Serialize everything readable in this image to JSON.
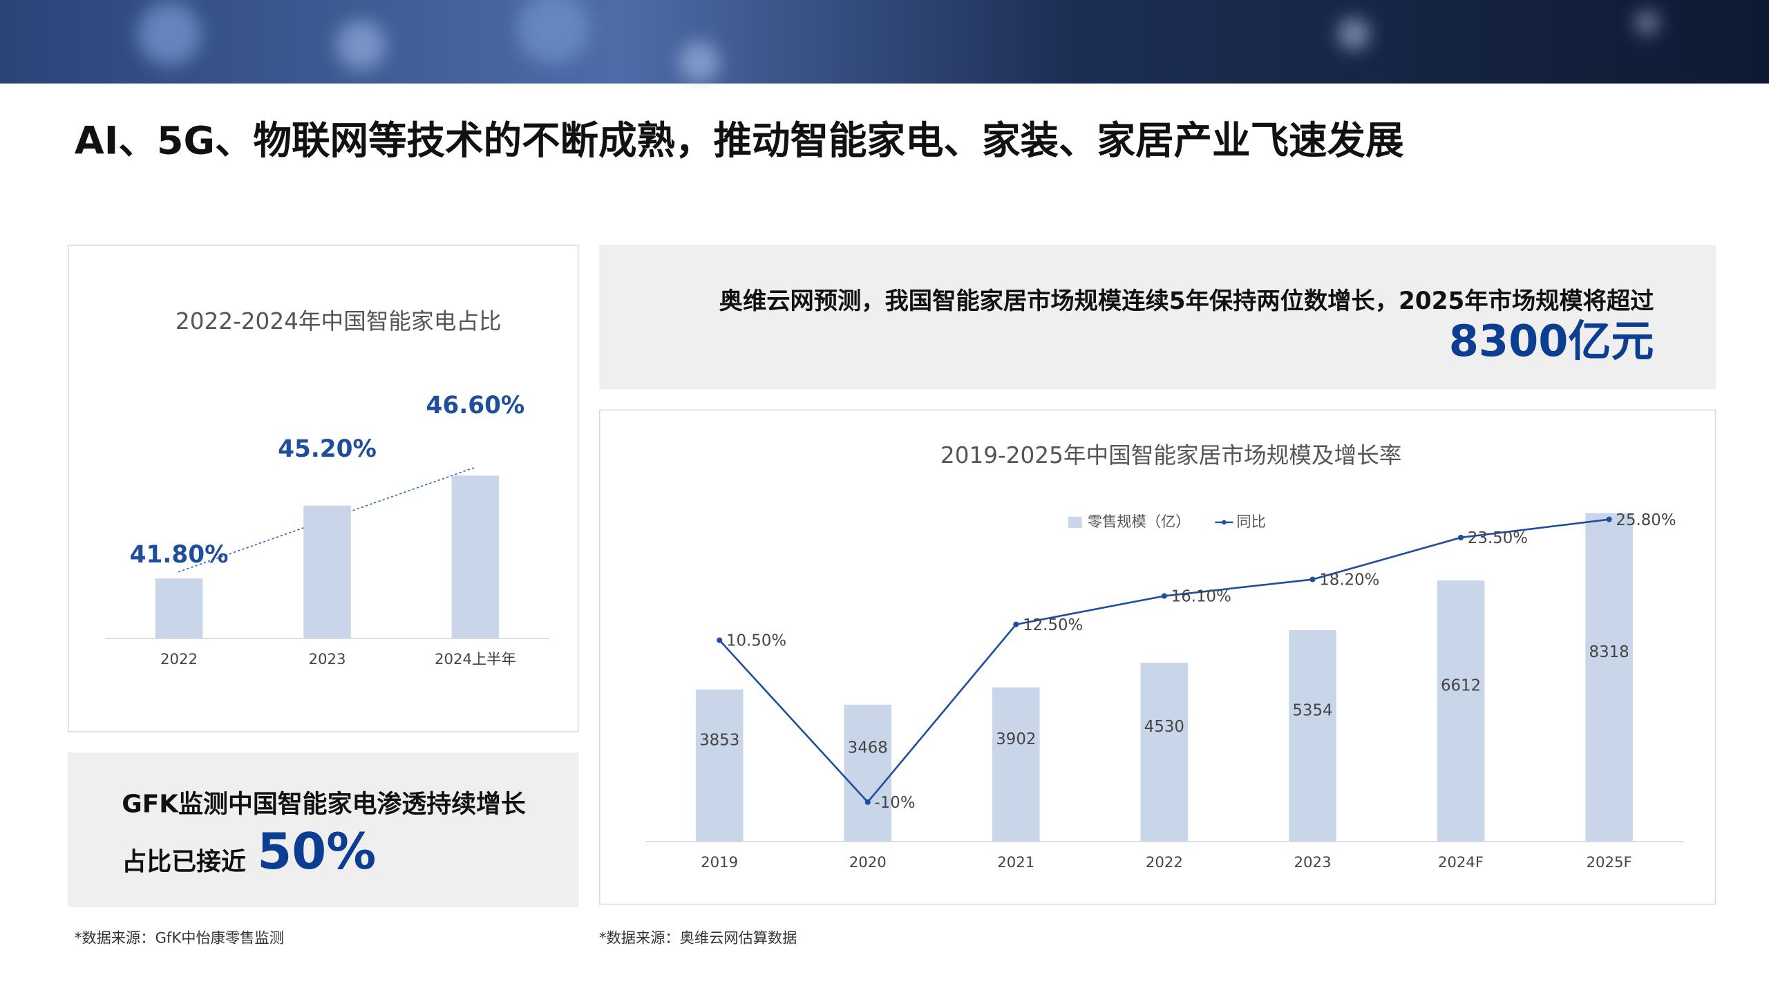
{
  "title": "AI、5G、物联网等技术的不断成熟，推动智能家电、家装、家居产业飞速发展",
  "left_callout": {
    "line1": "GFK监测中国智能家电渗透持续增长",
    "line2": "占比已接近",
    "highlight": "50%"
  },
  "right_callout": {
    "text": "奥维云网预测，我国智能家居市场规模连续5年保持两位数增长，2025年市场规模将超过",
    "highlight": "8300亿元"
  },
  "left_source": "*数据来源：GfK中怡康零售监测",
  "right_source": "*数据来源：奥维云网估算数据",
  "chart_data": [
    {
      "type": "bar",
      "title": "2022-2024年中国智能家电占比",
      "categories": [
        "2022",
        "2023",
        "2024上半年"
      ],
      "values": [
        41.8,
        45.2,
        46.6
      ],
      "value_labels": [
        "41.80%",
        "45.20%",
        "46.60%"
      ],
      "color": "#c9d6ea",
      "label_color": "#1f4e9c",
      "ylim": [
        39,
        49
      ]
    },
    {
      "type": "combo",
      "title": "2019-2025年中国智能家居市场规模及增长率",
      "categories": [
        "2019",
        "2020",
        "2021",
        "2022",
        "2023",
        "2024F",
        "2025F"
      ],
      "series": [
        {
          "name": "零售规模（亿）",
          "type": "bar",
          "color": "#c9d6ea",
          "values": [
            3853,
            3468,
            3902,
            4530,
            5354,
            6612,
            8318
          ]
        },
        {
          "name": "同比",
          "type": "line",
          "axis": "y2",
          "color": "#1f4e9c",
          "values": [
            10.5,
            -10,
            12.5,
            16.1,
            18.2,
            23.5,
            25.8
          ],
          "value_labels": [
            "10.50%",
            "-10%",
            "12.50%",
            "16.10%",
            "18.20%",
            "23.50%",
            "25.80%"
          ]
        }
      ],
      "ylim": [
        0,
        9000
      ],
      "y2lim": [
        -15,
        30
      ],
      "legend": "top"
    }
  ]
}
